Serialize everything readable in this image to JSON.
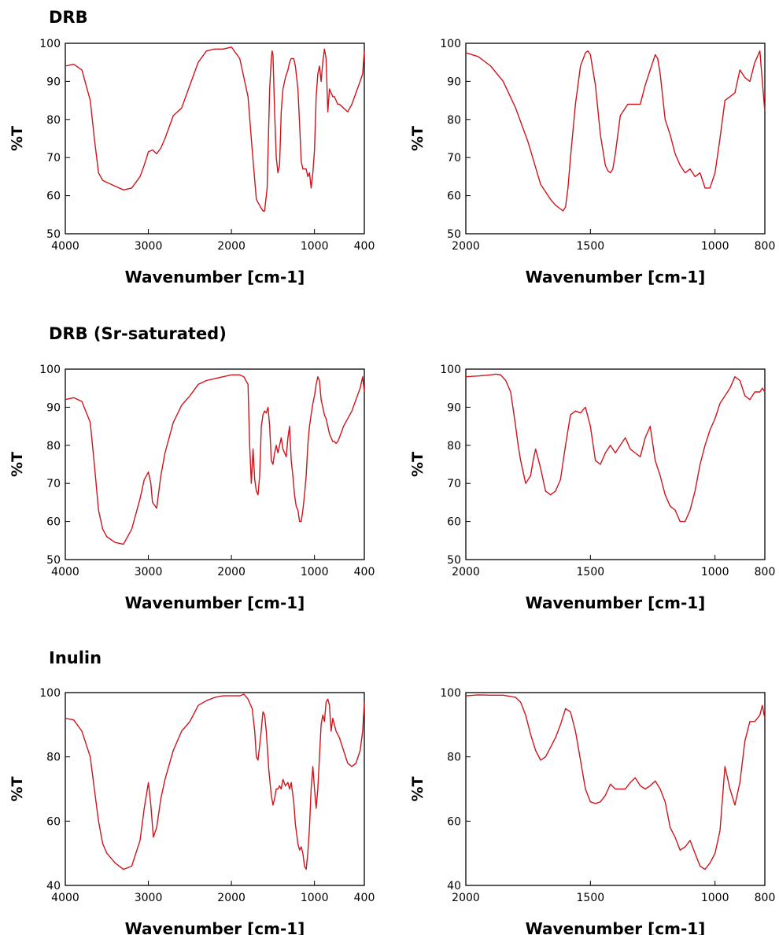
{
  "sections": [
    {
      "title": "DRB"
    },
    {
      "title": "DRB (Sr-saturated)"
    },
    {
      "title": "Inulin"
    }
  ],
  "line_color": "#d0141c",
  "chart_data": [
    {
      "type": "line",
      "section": "DRB",
      "xlabel": "Wavenumber [cm-1]",
      "ylabel": "%T",
      "xlim": [
        4000,
        400
      ],
      "ylim": [
        50,
        100
      ],
      "xticks": [
        4000,
        3000,
        2000,
        1000,
        400
      ],
      "yticks": [
        50,
        60,
        70,
        80,
        90,
        100
      ],
      "x": [
        4000,
        3900,
        3800,
        3700,
        3650,
        3600,
        3550,
        3500,
        3400,
        3300,
        3200,
        3100,
        3050,
        3000,
        2950,
        2900,
        2850,
        2800,
        2700,
        2600,
        2500,
        2400,
        2300,
        2200,
        2100,
        2000,
        1900,
        1800,
        1750,
        1700,
        1650,
        1620,
        1600,
        1570,
        1540,
        1520,
        1510,
        1500,
        1480,
        1460,
        1440,
        1420,
        1400,
        1380,
        1350,
        1320,
        1300,
        1280,
        1250,
        1230,
        1200,
        1180,
        1160,
        1140,
        1100,
        1080,
        1060,
        1040,
        1020,
        1000,
        980,
        960,
        940,
        920,
        900,
        880,
        860,
        840,
        820,
        800,
        780,
        760,
        740,
        720,
        700,
        650,
        600,
        550,
        500,
        450,
        420,
        400
      ],
      "y": [
        94,
        94.5,
        93,
        85,
        75,
        66,
        64,
        63.5,
        62.5,
        61.5,
        62,
        65,
        68,
        71.5,
        72,
        71,
        72.5,
        75,
        81,
        83,
        89,
        95,
        98,
        98.5,
        98.5,
        99,
        96,
        86,
        72,
        59,
        57,
        56,
        56,
        62,
        88,
        96,
        98,
        97,
        82,
        70,
        66,
        68,
        82,
        88,
        91,
        93,
        95,
        96,
        96,
        94,
        88,
        79,
        69,
        67,
        67,
        65,
        66,
        62,
        66,
        72,
        86,
        92,
        94,
        90,
        95,
        98.5,
        96,
        82,
        88,
        87,
        86,
        86,
        85,
        84,
        84,
        83,
        82,
        84,
        87,
        90,
        92,
        98
      ]
    },
    {
      "type": "line",
      "section": "DRB",
      "xlabel": "Wavenumber [cm-1]",
      "ylabel": "%T",
      "xlim": [
        2000,
        800
      ],
      "ylim": [
        50,
        100
      ],
      "xticks": [
        2000,
        1500,
        1000,
        800
      ],
      "yticks": [
        50,
        60,
        70,
        80,
        90,
        100
      ],
      "x": [
        2000,
        1950,
        1900,
        1850,
        1800,
        1750,
        1700,
        1660,
        1640,
        1620,
        1610,
        1600,
        1590,
        1580,
        1560,
        1540,
        1520,
        1510,
        1500,
        1480,
        1460,
        1440,
        1430,
        1420,
        1410,
        1400,
        1380,
        1350,
        1320,
        1300,
        1280,
        1260,
        1250,
        1240,
        1230,
        1220,
        1200,
        1180,
        1160,
        1140,
        1120,
        1100,
        1080,
        1060,
        1040,
        1020,
        1000,
        980,
        960,
        940,
        920,
        900,
        880,
        860,
        840,
        820,
        810,
        800
      ],
      "y": [
        97.5,
        96.5,
        94,
        90,
        83,
        74,
        63,
        59,
        57.5,
        56.5,
        56,
        57,
        62,
        70,
        84,
        94,
        97.5,
        98,
        97,
        89,
        76,
        68,
        66.5,
        66,
        67,
        71,
        81,
        84,
        84,
        84,
        89,
        93,
        95,
        97,
        96,
        92,
        80,
        76,
        71,
        68,
        66,
        67,
        65,
        66,
        62,
        62,
        66,
        75,
        85,
        86,
        87,
        93,
        91,
        90,
        95,
        98,
        90,
        82
      ]
    },
    {
      "type": "line",
      "section": "DRB (Sr-saturated)",
      "xlabel": "Wavenumber [cm-1]",
      "ylabel": "%T",
      "xlim": [
        4000,
        400
      ],
      "ylim": [
        50,
        100
      ],
      "xticks": [
        4000,
        3000,
        2000,
        1000,
        400
      ],
      "yticks": [
        50,
        60,
        70,
        80,
        90,
        100
      ],
      "x": [
        4000,
        3900,
        3800,
        3700,
        3650,
        3600,
        3550,
        3500,
        3400,
        3300,
        3200,
        3100,
        3050,
        3000,
        2970,
        2950,
        2900,
        2850,
        2800,
        2700,
        2600,
        2500,
        2400,
        2300,
        2200,
        2100,
        2000,
        1900,
        1850,
        1800,
        1780,
        1760,
        1740,
        1720,
        1700,
        1680,
        1660,
        1640,
        1620,
        1600,
        1580,
        1560,
        1540,
        1520,
        1500,
        1480,
        1460,
        1440,
        1420,
        1400,
        1380,
        1360,
        1340,
        1320,
        1300,
        1280,
        1260,
        1240,
        1220,
        1200,
        1180,
        1160,
        1140,
        1120,
        1100,
        1080,
        1060,
        1040,
        1020,
        1000,
        980,
        960,
        940,
        920,
        900,
        880,
        860,
        840,
        820,
        800,
        780,
        760,
        740,
        720,
        700,
        650,
        600,
        550,
        500,
        450,
        420,
        400
      ],
      "y": [
        92,
        92.5,
        91.5,
        86,
        75,
        63,
        58,
        56,
        54.5,
        54,
        58,
        66,
        71,
        73,
        70,
        65,
        63.5,
        72,
        78,
        86,
        90.5,
        93,
        96,
        97,
        97.5,
        98,
        98.5,
        98.5,
        98,
        96,
        80,
        70,
        79,
        71,
        68,
        67,
        72,
        85,
        88,
        89,
        88.5,
        90,
        85,
        76,
        75,
        78,
        80,
        78,
        80,
        82,
        79,
        78,
        77,
        82,
        85,
        76,
        72,
        67,
        64,
        63,
        60,
        60,
        63,
        67,
        72,
        80,
        85,
        88,
        91,
        93,
        96,
        98,
        97,
        92,
        90,
        88,
        87,
        85,
        83,
        82,
        81,
        81,
        80.5,
        81,
        82,
        85,
        87,
        89,
        92,
        95,
        98,
        94
      ]
    },
    {
      "type": "line",
      "section": "DRB (Sr-saturated)",
      "xlabel": "Wavenumber [cm-1]",
      "ylabel": "%T",
      "xlim": [
        2000,
        800
      ],
      "ylim": [
        50,
        100
      ],
      "xticks": [
        2000,
        1500,
        1000,
        800
      ],
      "yticks": [
        50,
        60,
        70,
        80,
        90,
        100
      ],
      "x": [
        2000,
        1950,
        1900,
        1880,
        1860,
        1840,
        1820,
        1800,
        1790,
        1780,
        1760,
        1740,
        1730,
        1720,
        1700,
        1680,
        1660,
        1640,
        1620,
        1600,
        1580,
        1560,
        1540,
        1520,
        1500,
        1480,
        1460,
        1440,
        1420,
        1400,
        1380,
        1360,
        1340,
        1320,
        1300,
        1280,
        1260,
        1240,
        1220,
        1200,
        1180,
        1160,
        1140,
        1120,
        1100,
        1080,
        1060,
        1040,
        1020,
        1000,
        980,
        960,
        940,
        920,
        900,
        880,
        860,
        840,
        820,
        810,
        800
      ],
      "y": [
        98,
        98.2,
        98.5,
        98.7,
        98.5,
        97,
        94,
        85,
        80,
        76,
        70,
        72,
        76,
        79,
        74,
        68,
        67,
        68,
        71,
        80,
        88,
        89,
        88.5,
        90,
        85,
        76,
        75,
        78,
        80,
        78,
        80,
        82,
        79,
        78,
        77,
        82,
        85,
        76,
        72,
        67,
        64,
        63,
        60,
        60,
        63,
        68,
        75,
        80,
        84,
        87,
        91,
        93,
        95,
        98,
        97,
        93,
        92,
        94,
        94,
        95,
        94
      ]
    },
    {
      "type": "line",
      "section": "Inulin",
      "xlabel": "Wavenumber [cm-1]",
      "ylabel": "%T",
      "xlim": [
        4000,
        400
      ],
      "ylim": [
        40,
        100
      ],
      "xticks": [
        4000,
        3000,
        2000,
        1000,
        400
      ],
      "yticks": [
        40,
        60,
        80,
        100
      ],
      "x": [
        4000,
        3900,
        3800,
        3700,
        3650,
        3600,
        3550,
        3500,
        3400,
        3300,
        3200,
        3100,
        3050,
        3000,
        2970,
        2940,
        2900,
        2850,
        2800,
        2700,
        2600,
        2500,
        2400,
        2300,
        2200,
        2100,
        2000,
        1900,
        1850,
        1800,
        1750,
        1720,
        1700,
        1680,
        1650,
        1620,
        1600,
        1580,
        1550,
        1520,
        1500,
        1480,
        1460,
        1440,
        1420,
        1400,
        1380,
        1350,
        1320,
        1300,
        1280,
        1250,
        1230,
        1200,
        1180,
        1160,
        1140,
        1120,
        1100,
        1080,
        1060,
        1040,
        1020,
        1000,
        980,
        960,
        940,
        920,
        900,
        880,
        860,
        840,
        820,
        800,
        780,
        760,
        740,
        720,
        700,
        650,
        600,
        550,
        500,
        450,
        420,
        400
      ],
      "y": [
        92,
        91.5,
        88,
        80,
        70,
        60,
        53,
        50,
        47,
        45,
        46,
        54,
        64,
        72,
        65,
        55,
        58,
        67,
        73,
        82,
        88,
        91,
        96,
        97.5,
        98.5,
        99,
        99,
        99,
        99.5,
        98,
        95,
        88,
        80,
        79,
        86,
        94,
        93,
        88,
        76,
        68,
        65,
        67,
        70,
        70,
        71,
        70,
        73,
        71,
        72,
        70,
        72,
        66,
        59,
        53,
        51,
        52,
        50,
        46,
        45,
        50,
        58,
        70,
        77,
        70,
        64,
        70,
        80,
        90,
        93,
        91,
        97,
        98,
        96,
        88,
        92,
        90,
        88,
        87,
        86,
        82,
        78,
        77,
        78,
        82,
        88,
        97
      ]
    },
    {
      "type": "line",
      "section": "Inulin",
      "xlabel": "Wavenumber [cm-1]",
      "ylabel": "%T",
      "xlim": [
        2000,
        800
      ],
      "ylim": [
        40,
        100
      ],
      "xticks": [
        2000,
        1500,
        1000,
        800
      ],
      "yticks": [
        40,
        60,
        80,
        100
      ],
      "x": [
        2000,
        1950,
        1900,
        1850,
        1800,
        1780,
        1760,
        1740,
        1720,
        1700,
        1680,
        1660,
        1640,
        1620,
        1600,
        1580,
        1560,
        1540,
        1520,
        1500,
        1480,
        1460,
        1440,
        1420,
        1400,
        1380,
        1360,
        1340,
        1320,
        1300,
        1280,
        1260,
        1240,
        1220,
        1200,
        1180,
        1160,
        1140,
        1120,
        1100,
        1080,
        1060,
        1040,
        1020,
        1000,
        980,
        960,
        940,
        920,
        900,
        880,
        860,
        840,
        820,
        810,
        800
      ],
      "y": [
        99,
        99.3,
        99.2,
        99.2,
        98.5,
        97,
        93,
        87,
        82,
        79,
        80,
        83,
        86,
        90,
        95,
        94,
        88,
        79,
        70,
        66,
        65.5,
        66,
        68,
        71.5,
        70,
        70,
        70,
        72,
        73.5,
        71,
        70,
        71,
        72.5,
        70,
        66,
        58,
        55,
        51,
        52,
        54,
        50,
        46,
        45,
        47,
        50,
        57,
        77,
        70,
        65,
        72,
        85,
        91,
        91,
        93,
        96,
        92
      ]
    }
  ]
}
